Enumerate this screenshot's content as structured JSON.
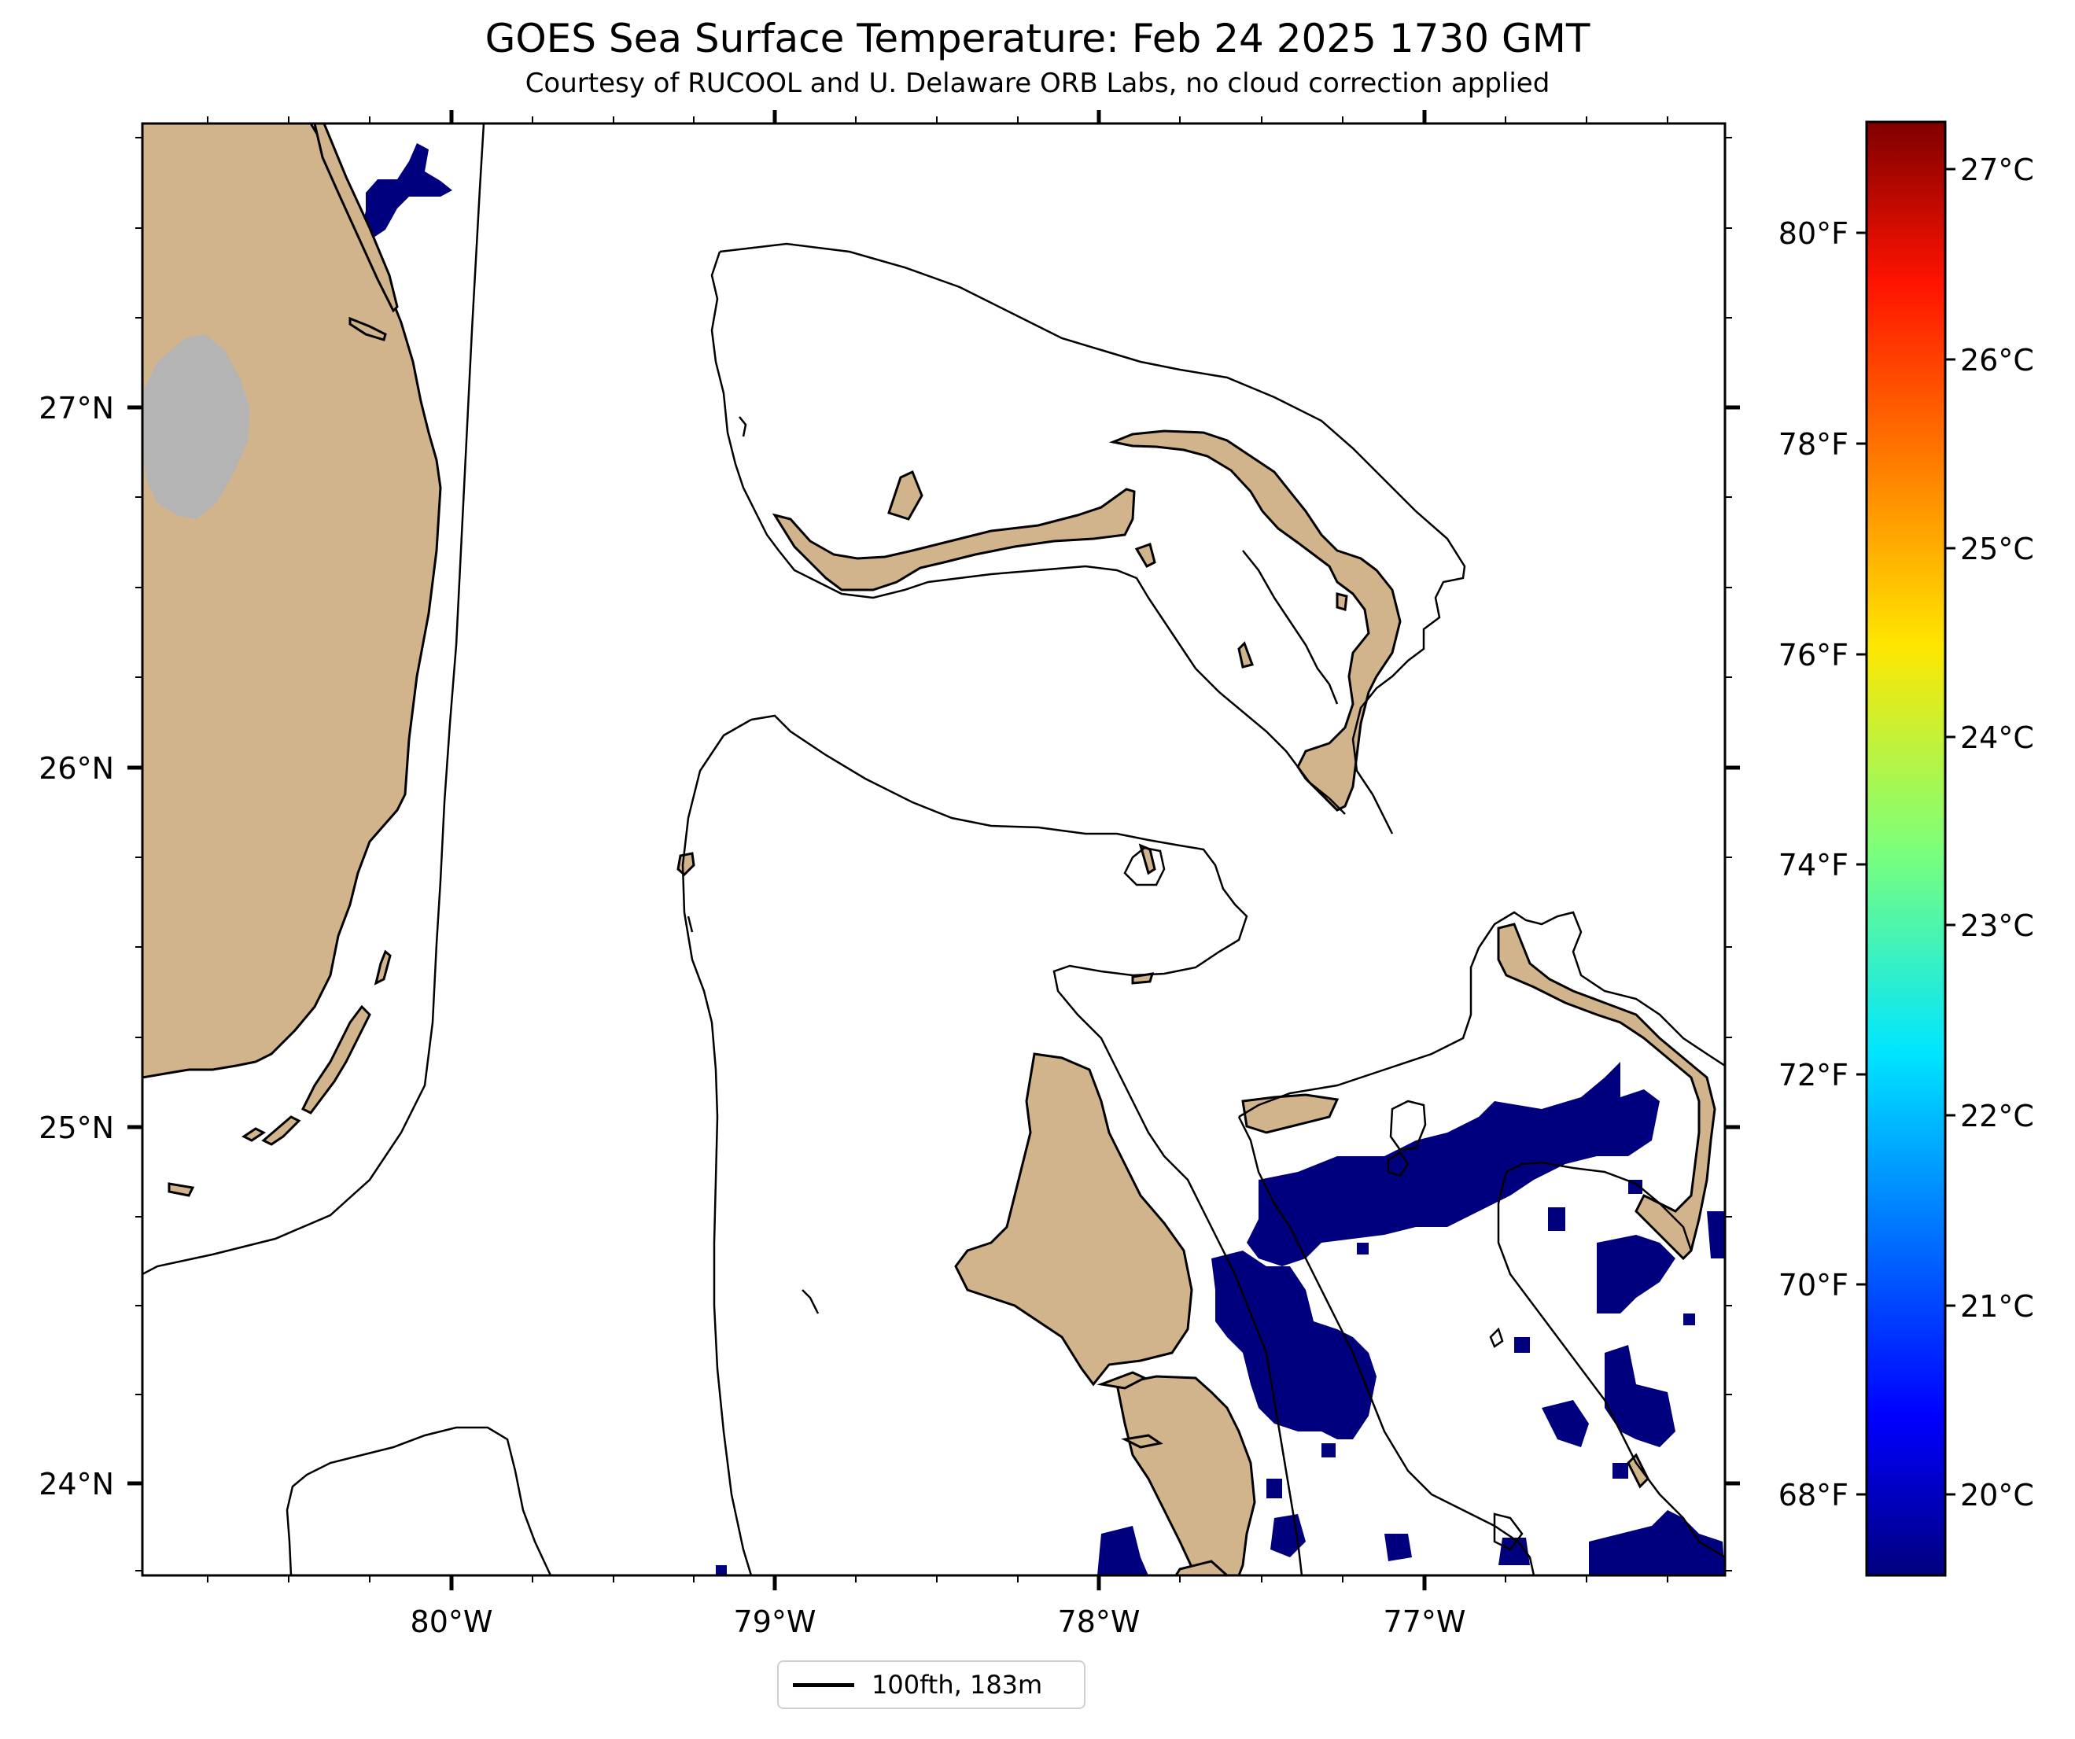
{
  "title": "GOES Sea Surface Temperature: Feb 24 2025 1730 GMT",
  "subtitle": "Courtesy of RUCOOL and U. Delaware ORB Labs, no cloud correction applied",
  "map": {
    "lon_range": [
      -80.95,
      -76.1
    ],
    "lat_range": [
      23.75,
      27.8
    ],
    "lon_ticks": [
      "80°W",
      "79°W",
      "78°W",
      "77°W"
    ],
    "lat_ticks": [
      "27°N",
      "26°N",
      "25°N",
      "24°N"
    ],
    "colors": {
      "land": "#d2b48c",
      "cloud": "#b4b4b4",
      "cold_sst": "#00007f",
      "isobath": "#000000"
    }
  },
  "colorbar": {
    "celsius_ticks": [
      "27°C",
      "26°C",
      "25°C",
      "24°C",
      "23°C",
      "22°C",
      "21°C",
      "20°C"
    ],
    "fahrenheit_ticks": [
      "80°F",
      "78°F",
      "76°F",
      "74°F",
      "72°F",
      "70°F",
      "68°F"
    ],
    "range_c": [
      19.6,
      27.2
    ],
    "colormap": "jet"
  },
  "legend": {
    "label": "100fth, 183m"
  }
}
